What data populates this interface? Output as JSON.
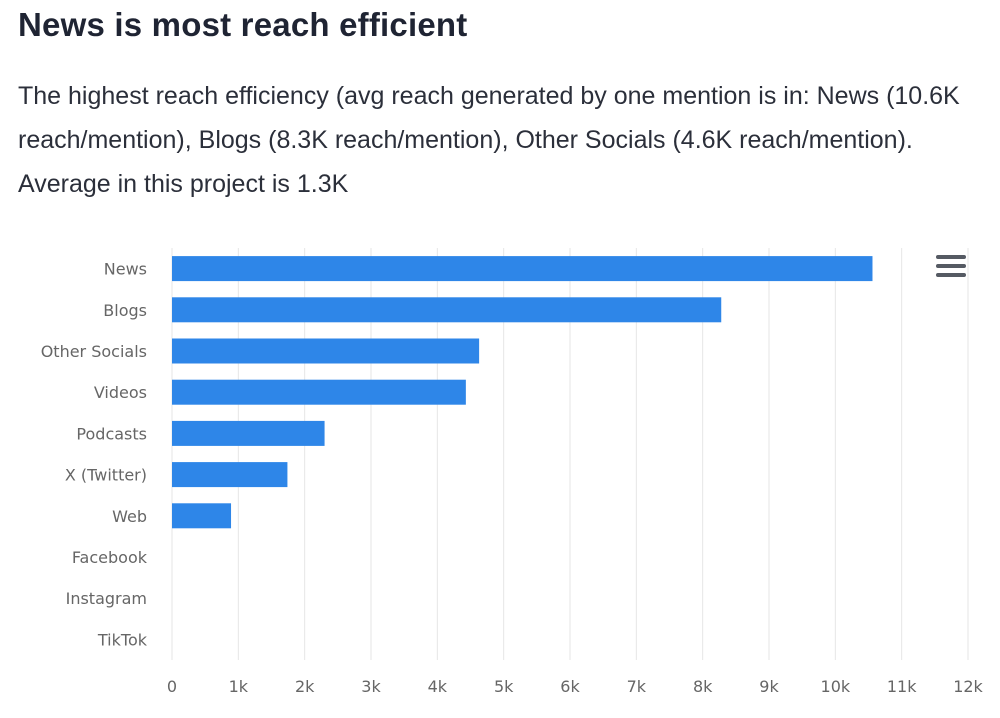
{
  "header": {
    "title": "News is most reach efficient",
    "subtitle": "The highest reach efficiency (avg reach generated by one mention is in: News (10.6K reach/mention), Blogs (8.3K reach/mention), Other Socials (4.6K reach/mention). Average in this project is 1.3K"
  },
  "chart_data": {
    "type": "bar",
    "orientation": "horizontal",
    "title": "News is most reach efficient",
    "categories": [
      "News",
      "Blogs",
      "Other Socials",
      "Videos",
      "Podcasts",
      "X (Twitter)",
      "Web",
      "Facebook",
      "Instagram",
      "TikTok"
    ],
    "values": [
      10560,
      8280,
      4630,
      4430,
      2300,
      1740,
      890,
      0,
      0,
      0
    ],
    "xlim": [
      0,
      12000
    ],
    "ticks": [
      0,
      1000,
      2000,
      3000,
      4000,
      5000,
      6000,
      7000,
      8000,
      9000,
      10000,
      11000,
      12000
    ],
    "tick_labels": [
      "0",
      "1k",
      "2k",
      "3k",
      "4k",
      "5k",
      "6k",
      "7k",
      "8k",
      "9k",
      "10k",
      "11k",
      "12k"
    ],
    "grid": true,
    "legend": "none",
    "xlabel": "",
    "ylabel": "",
    "bar_color": "#2e86e8",
    "grid_color": "#e6e6e6",
    "label_color": "#666666"
  },
  "toolbar": {
    "menu_icon": "hamburger-menu-icon"
  }
}
